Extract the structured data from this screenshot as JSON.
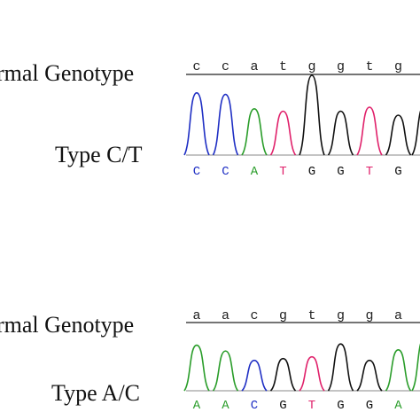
{
  "base_colors": {
    "A": "#2a9d2a",
    "C": "#1f2fc4",
    "G": "#111111",
    "T": "#e0206a"
  },
  "panels": [
    {
      "normal_label": "rmal Genotype",
      "type_label": "Type C/T",
      "ref_seq": [
        "c",
        "c",
        "a",
        "t",
        "g",
        "g",
        "t",
        "g"
      ],
      "called_seq": [
        "C",
        "C",
        "A",
        "T",
        "G",
        "G",
        "T",
        "G"
      ],
      "peak_levels": [
        0.78,
        0.76,
        0.58,
        0.55,
        1.0,
        0.55,
        0.6,
        0.5
      ],
      "edge_peak": {
        "base": "G",
        "level": 0.62
      }
    },
    {
      "normal_label": "rmal Genotype",
      "type_label": "Type A/C",
      "ref_seq": [
        "a",
        "a",
        "c",
        "g",
        "t",
        "g",
        "g",
        "a"
      ],
      "called_seq": [
        "A",
        "A",
        "C",
        "G",
        "T",
        "G",
        "G",
        "A"
      ],
      "peak_levels": [
        0.78,
        0.68,
        0.52,
        0.55,
        0.58,
        0.8,
        0.52,
        0.7
      ],
      "edge_peak": {
        "base": "A",
        "level": 0.9
      }
    }
  ]
}
